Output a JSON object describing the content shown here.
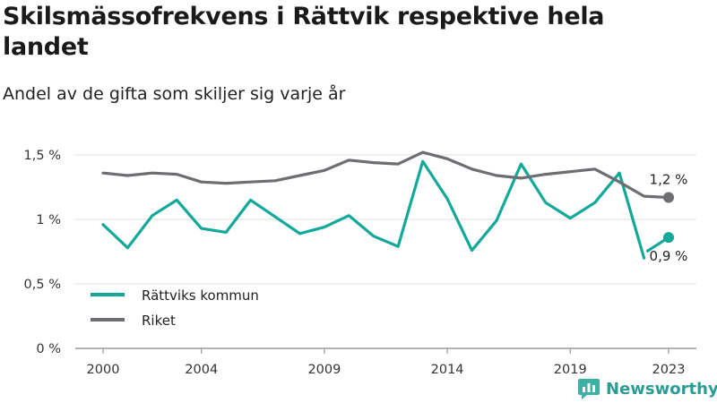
{
  "title": "Skilsmässofrekvens i Rättvik respektive hela landet",
  "subtitle": "Andel av de gifta som skiljer sig varje år",
  "brand": {
    "name": "Newsworthy",
    "icon": "newsworthy-logo-icon"
  },
  "colors": {
    "rattvik": "#12a89a",
    "riket": "#6e6d72",
    "grid": "#dcdcdc"
  },
  "chart_data": {
    "type": "line",
    "ylim": [
      0,
      1.5
    ],
    "xlim": [
      2000,
      2023
    ],
    "yticks": [
      {
        "value": 0,
        "label": "0 %"
      },
      {
        "value": 0.5,
        "label": "0,5 %"
      },
      {
        "value": 1,
        "label": "1 %"
      },
      {
        "value": 1.5,
        "label": "1,5 %"
      }
    ],
    "xticks": [
      {
        "value": 2000,
        "label": "2000"
      },
      {
        "value": 2004,
        "label": "2004"
      },
      {
        "value": 2009,
        "label": "2009"
      },
      {
        "value": 2014,
        "label": "2014"
      },
      {
        "value": 2019,
        "label": "2019"
      },
      {
        "value": 2023,
        "label": "2023"
      }
    ],
    "grid": true,
    "legend": "bottom-left",
    "series": [
      {
        "name": "Rättviks kommun",
        "color": "#12a89a",
        "x": [
          2000,
          2001,
          2002,
          2003,
          2004,
          2005,
          2006,
          2007,
          2008,
          2009,
          2010,
          2011,
          2012,
          2013,
          2014,
          2015,
          2016,
          2017,
          2018,
          2019,
          2020,
          2021,
          2022
        ],
        "values": [
          0.96,
          0.78,
          1.03,
          1.15,
          0.93,
          0.9,
          1.15,
          1.02,
          0.89,
          0.94,
          1.03,
          0.87,
          0.79,
          1.45,
          1.16,
          0.76,
          0.99,
          1.43,
          1.13,
          1.01,
          1.13,
          1.36,
          0.7
        ],
        "end": {
          "x": 2023,
          "value": 0.86,
          "label": "0,9 %"
        }
      },
      {
        "name": "Riket",
        "color": "#6e6d72",
        "x": [
          2000,
          2001,
          2002,
          2003,
          2004,
          2005,
          2006,
          2007,
          2008,
          2009,
          2010,
          2011,
          2012,
          2013,
          2014,
          2015,
          2016,
          2017,
          2018,
          2019,
          2020,
          2021,
          2022,
          2023
        ],
        "values": [
          1.36,
          1.34,
          1.36,
          1.35,
          1.29,
          1.28,
          1.29,
          1.3,
          1.34,
          1.38,
          1.46,
          1.44,
          1.43,
          1.52,
          1.47,
          1.39,
          1.34,
          1.32,
          1.35,
          1.37,
          1.39,
          1.29,
          1.18,
          1.17
        ],
        "end": {
          "x": 2023,
          "value": 1.17,
          "label": "1,2 %"
        }
      }
    ]
  }
}
